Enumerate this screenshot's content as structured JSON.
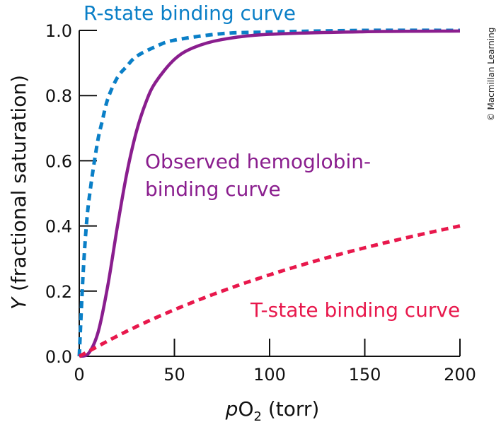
{
  "chart_data": {
    "type": "line",
    "xlabel_italic": "p",
    "xlabel_main": "O",
    "xlabel_sub": "2",
    "xlabel_rest": " (torr)",
    "ylabel_italic": "Y",
    "ylabel_rest": " (fractional saturation)",
    "xlim": [
      0,
      200
    ],
    "ylim": [
      0,
      1.0
    ],
    "xticks": [
      "0",
      "50",
      "100",
      "150",
      "200"
    ],
    "yticks": [
      "0.0",
      "0.2",
      "0.4",
      "0.6",
      "0.8",
      "1.0"
    ],
    "grid": false,
    "series": [
      {
        "name": "R-state binding curve",
        "color": "#0a7fc7",
        "style": "dashed",
        "x": [
          0,
          2,
          4,
          6,
          8,
          10,
          12,
          15,
          20,
          25,
          30,
          40,
          50,
          75,
          100,
          150,
          200
        ],
        "y": [
          0,
          0.25,
          0.42,
          0.52,
          0.6,
          0.67,
          0.72,
          0.79,
          0.855,
          0.89,
          0.92,
          0.95,
          0.97,
          0.99,
          0.995,
          1.0,
          1.0
        ]
      },
      {
        "name": "Observed hemoglobin-binding curve",
        "color": "#8a1e8e",
        "style": "solid",
        "x": [
          0,
          5,
          10,
          15,
          20,
          25,
          30,
          35,
          40,
          50,
          60,
          75,
          100,
          150,
          200
        ],
        "y": [
          0,
          0.01,
          0.076,
          0.217,
          0.397,
          0.562,
          0.689,
          0.779,
          0.84,
          0.911,
          0.947,
          0.972,
          0.988,
          0.996,
          0.998
        ]
      },
      {
        "name": "T-state binding curve",
        "color": "#e8184c",
        "style": "dashed",
        "x": [
          0,
          25,
          50,
          75,
          100,
          125,
          150,
          175,
          200
        ],
        "y": [
          0,
          0.077,
          0.143,
          0.2,
          0.25,
          0.294,
          0.333,
          0.368,
          0.4
        ]
      }
    ],
    "annotations": {
      "r_label": "R-state binding curve",
      "obs_label_1": "Observed hemoglobin-",
      "obs_label_2": "binding curve",
      "t_label": "T-state binding curve"
    }
  },
  "copyright": "© Macmillan Learning"
}
